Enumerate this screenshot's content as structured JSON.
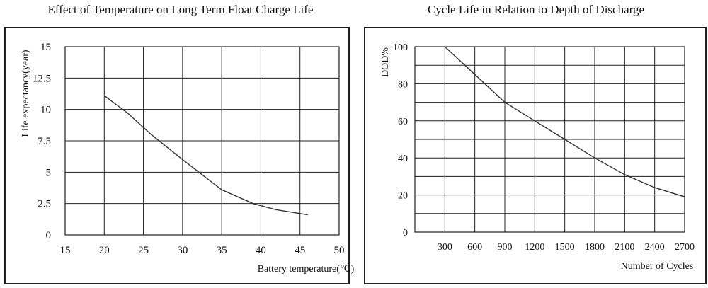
{
  "chart_data": [
    {
      "type": "line",
      "title": "Effect of Temperature on Long Term Float Charge Life",
      "xlabel": "Battery temperature(℃)",
      "ylabel": "Life expectancy(year)",
      "xlim": [
        15,
        50
      ],
      "ylim": [
        0,
        15
      ],
      "x_ticks": [
        15,
        20,
        25,
        30,
        35,
        40,
        45,
        50
      ],
      "x_tick_labels": [
        "15",
        "20",
        "25",
        "30",
        "35",
        "40",
        "45",
        "50"
      ],
      "y_ticks": [
        0,
        2.5,
        5,
        7.5,
        10,
        12.5,
        15
      ],
      "y_tick_labels": [
        "0",
        "2.5",
        "5",
        "7.5",
        "10",
        "12.5",
        "15"
      ],
      "grid": true,
      "series": [
        {
          "name": "Life expectancy",
          "x": [
            20,
            23,
            26,
            30,
            35,
            39,
            42,
            46
          ],
          "y": [
            11.1,
            9.7,
            8.0,
            6.0,
            3.6,
            2.5,
            2.0,
            1.6
          ]
        }
      ]
    },
    {
      "type": "line",
      "title": "Cycle Life in Relation to Depth of Discharge",
      "xlabel": "Number of Cycles",
      "ylabel": "DOD%",
      "xlim": [
        0,
        2700
      ],
      "ylim": [
        0,
        100
      ],
      "x_ticks": [
        300,
        600,
        900,
        1200,
        1500,
        1800,
        2100,
        2400,
        2700
      ],
      "x_tick_labels": [
        "300",
        "600",
        "900",
        "1200",
        "1500",
        "1800",
        "2100",
        "2400",
        "2700"
      ],
      "y_ticks": [
        0,
        20,
        40,
        60,
        80,
        100
      ],
      "y_tick_labels": [
        "0",
        "20",
        "40",
        "60",
        "80",
        "100"
      ],
      "grid": true,
      "series": [
        {
          "name": "DOD",
          "x": [
            300,
            600,
            900,
            1200,
            1500,
            1800,
            2100,
            2400,
            2700
          ],
          "y": [
            100,
            85,
            70,
            60,
            50,
            40,
            31,
            24,
            19
          ]
        }
      ]
    }
  ]
}
